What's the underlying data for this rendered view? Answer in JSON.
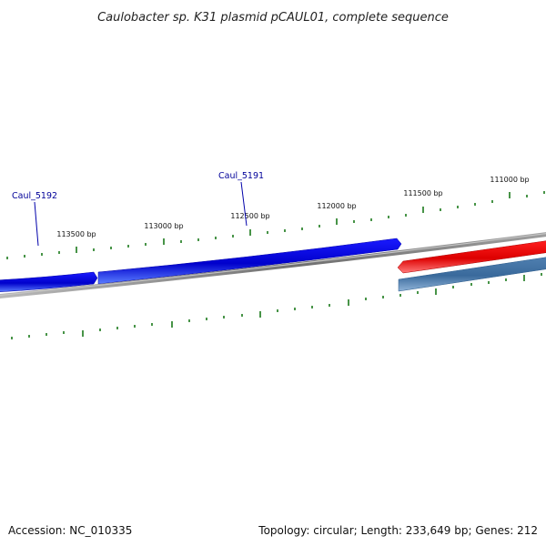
{
  "title": "Caulobacter sp. K31 plasmid pCAUL01, complete sequence",
  "footer": {
    "accession": "Accession: NC_010335",
    "summary": "Topology: circular; Length: 233,649 bp; Genes: 212"
  },
  "ruler": {
    "major_labels": [
      "113500 bp",
      "113000 bp",
      "112500 bp",
      "112000 bp",
      "111500 bp",
      "111000 bp"
    ]
  },
  "genes": [
    {
      "label": "Caul_5192",
      "strand": "forward",
      "color": "#0000dd"
    },
    {
      "label": "Caul_5191",
      "strand": "forward",
      "color": "#0000dd"
    },
    {
      "label": "",
      "strand": "reverse",
      "color": "#ee0000"
    },
    {
      "label": "",
      "strand": "reverse",
      "color": "#4477aa"
    }
  ],
  "colors": {
    "backbone": "#808080",
    "tick": "#1a7a1a",
    "gene_label": "#000099",
    "forward_gene": "#0000dd",
    "reverse_gene_red": "#ee0000",
    "reverse_gene_steel": "#4477aa"
  }
}
